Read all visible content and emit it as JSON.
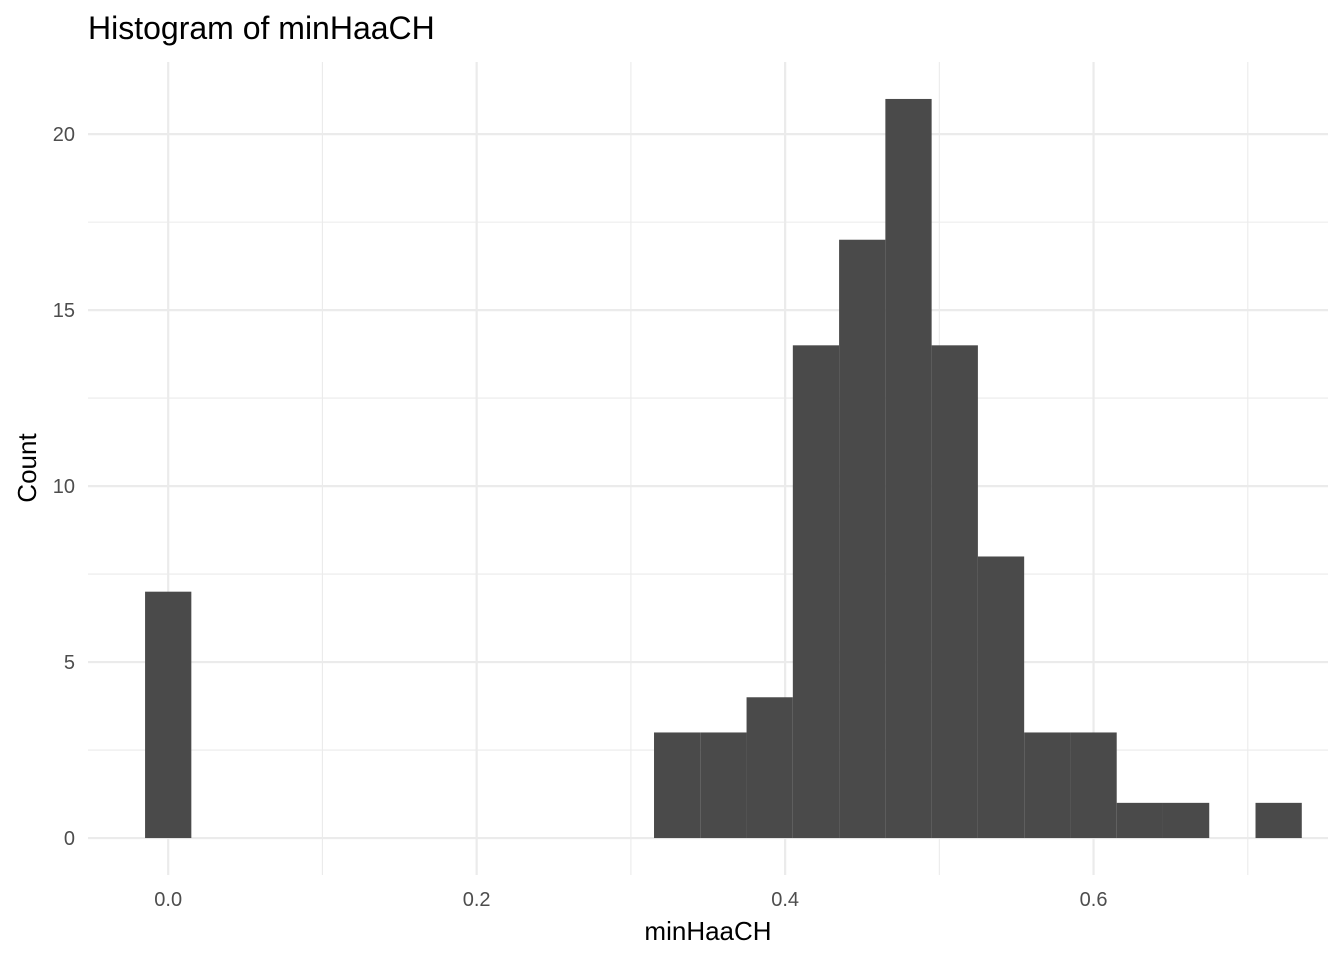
{
  "chart_data": {
    "type": "bar",
    "title": "Histogram of minHaaCH",
    "xlabel": "minHaaCH",
    "ylabel": "Count",
    "xlim": [
      -0.052,
      0.752
    ],
    "ylim": [
      -1.05,
      22.05
    ],
    "x_ticks": [
      0.0,
      0.2,
      0.4,
      0.6
    ],
    "x_tick_labels": [
      "0.0",
      "0.2",
      "0.4",
      "0.6"
    ],
    "x_minor_ticks": [
      0.1,
      0.3,
      0.5,
      0.7
    ],
    "y_ticks": [
      0,
      5,
      10,
      15,
      20
    ],
    "y_tick_labels": [
      "0",
      "5",
      "10",
      "15",
      "20"
    ],
    "y_minor_ticks": [
      2.5,
      7.5,
      12.5,
      17.5
    ],
    "bin_width": 0.03,
    "bins": [
      {
        "x": 0.0,
        "count": 7
      },
      {
        "x": 0.03,
        "count": 0
      },
      {
        "x": 0.06,
        "count": 0
      },
      {
        "x": 0.09,
        "count": 0
      },
      {
        "x": 0.12,
        "count": 0
      },
      {
        "x": 0.15,
        "count": 0
      },
      {
        "x": 0.18,
        "count": 0
      },
      {
        "x": 0.21,
        "count": 0
      },
      {
        "x": 0.24,
        "count": 0
      },
      {
        "x": 0.27,
        "count": 0
      },
      {
        "x": 0.3,
        "count": 0
      },
      {
        "x": 0.33,
        "count": 3
      },
      {
        "x": 0.36,
        "count": 3
      },
      {
        "x": 0.39,
        "count": 4
      },
      {
        "x": 0.42,
        "count": 14
      },
      {
        "x": 0.45,
        "count": 17
      },
      {
        "x": 0.48,
        "count": 21
      },
      {
        "x": 0.51,
        "count": 14
      },
      {
        "x": 0.54,
        "count": 8
      },
      {
        "x": 0.57,
        "count": 3
      },
      {
        "x": 0.6,
        "count": 3
      },
      {
        "x": 0.63,
        "count": 1
      },
      {
        "x": 0.66,
        "count": 1
      },
      {
        "x": 0.69,
        "count": 0
      },
      {
        "x": 0.72,
        "count": 1
      }
    ],
    "bar_color": "#4a4a4a",
    "grid": true,
    "legend": "none"
  }
}
